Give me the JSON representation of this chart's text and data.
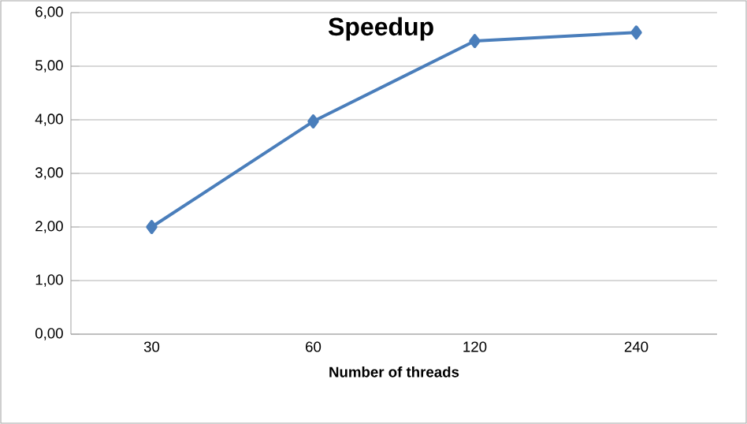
{
  "chart_data": {
    "type": "line",
    "title": "Speedup",
    "xlabel": "Number of threads",
    "categories": [
      "30",
      "60",
      "120",
      "240"
    ],
    "series": [
      {
        "color": "#4a7ebb",
        "values": [
          2.0,
          3.97,
          5.47,
          5.63
        ]
      }
    ],
    "ylim": [
      0,
      6
    ],
    "yticks": [
      {
        "value": 0,
        "label": "0,00"
      },
      {
        "value": 1,
        "label": "1,00"
      },
      {
        "value": 2,
        "label": "2,00"
      },
      {
        "value": 3,
        "label": "3,00"
      },
      {
        "value": 4,
        "label": "4,00"
      },
      {
        "value": 5,
        "label": "5,00"
      },
      {
        "value": 6,
        "label": "6,00"
      }
    ],
    "grid": "y",
    "marker": "diamond",
    "line_style": "solid"
  }
}
